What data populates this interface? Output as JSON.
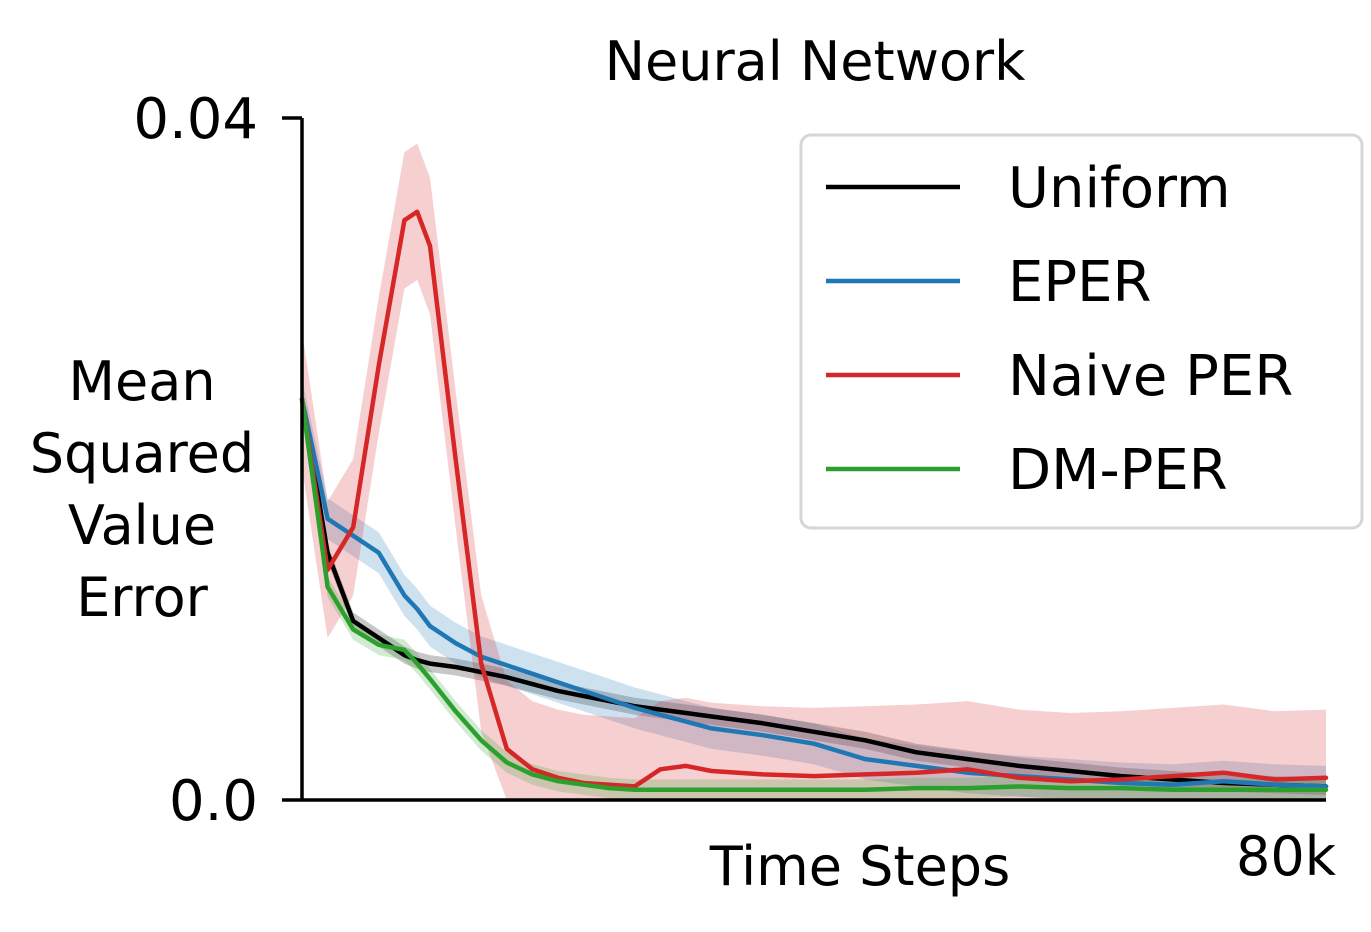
{
  "chart_data": {
    "type": "line",
    "title": "Neural Network",
    "xlabel": "Time Steps",
    "ylabel_lines": [
      "Mean",
      "Squared",
      "Value",
      "Error"
    ],
    "xlim": [
      0,
      80000
    ],
    "ylim": [
      0,
      0.04
    ],
    "x_tick_labels": [
      {
        "value": 80000,
        "label": "80k"
      }
    ],
    "y_tick_labels": [
      {
        "value": 0,
        "label": "0.0"
      },
      {
        "value": 0.04,
        "label": "0.04"
      }
    ],
    "grid": false,
    "legend_position": "top-right",
    "x": [
      0,
      2000,
      4000,
      6000,
      8000,
      9000,
      10000,
      12000,
      14000,
      16000,
      18000,
      20000,
      22000,
      24000,
      26000,
      28000,
      30000,
      32000,
      36000,
      40000,
      44000,
      48000,
      52000,
      56000,
      60000,
      64000,
      68000,
      72000,
      76000,
      80000
    ],
    "series": [
      {
        "name": "Uniform",
        "color": "#000000",
        "band": 0.0005,
        "values": [
          0.0235,
          0.0145,
          0.0105,
          0.0095,
          0.0085,
          0.0082,
          0.008,
          0.0078,
          0.0075,
          0.0072,
          0.0068,
          0.0064,
          0.0061,
          0.0058,
          0.0055,
          0.0053,
          0.0051,
          0.0049,
          0.0045,
          0.004,
          0.0035,
          0.0028,
          0.0024,
          0.002,
          0.0017,
          0.0014,
          0.0012,
          0.001,
          0.0009,
          0.0008
        ]
      },
      {
        "name": "EPER",
        "color": "#1f77b4",
        "band": 0.0012,
        "values": [
          0.0235,
          0.0165,
          0.0155,
          0.0145,
          0.012,
          0.0112,
          0.0102,
          0.0092,
          0.0084,
          0.0079,
          0.0074,
          0.0069,
          0.0064,
          0.0059,
          0.0054,
          0.005,
          0.0046,
          0.0042,
          0.0038,
          0.0033,
          0.0024,
          0.002,
          0.0016,
          0.0014,
          0.0012,
          0.001,
          0.0009,
          0.0011,
          0.0009,
          0.0008
        ]
      },
      {
        "name": "Naive PER",
        "color": "#d62728",
        "band": 0.004,
        "values": [
          0.0235,
          0.0135,
          0.016,
          0.0255,
          0.034,
          0.0345,
          0.0325,
          0.02,
          0.008,
          0.003,
          0.0018,
          0.0013,
          0.001,
          0.0009,
          0.0008,
          0.0018,
          0.002,
          0.0017,
          0.0015,
          0.0014,
          0.0015,
          0.0016,
          0.0018,
          0.0013,
          0.0011,
          0.0012,
          0.0014,
          0.0016,
          0.0012,
          0.0013
        ]
      },
      {
        "name": "DM-PER",
        "color": "#2ca02c",
        "band": 0.0006,
        "values": [
          0.0235,
          0.0125,
          0.01,
          0.0091,
          0.0088,
          0.008,
          0.0071,
          0.0052,
          0.0035,
          0.0022,
          0.0015,
          0.0011,
          0.0009,
          0.0007,
          0.0006,
          0.0006,
          0.0006,
          0.0006,
          0.0006,
          0.0006,
          0.0006,
          0.0007,
          0.0007,
          0.0008,
          0.0007,
          0.0007,
          0.0006,
          0.0006,
          0.0006,
          0.0006
        ]
      }
    ]
  }
}
